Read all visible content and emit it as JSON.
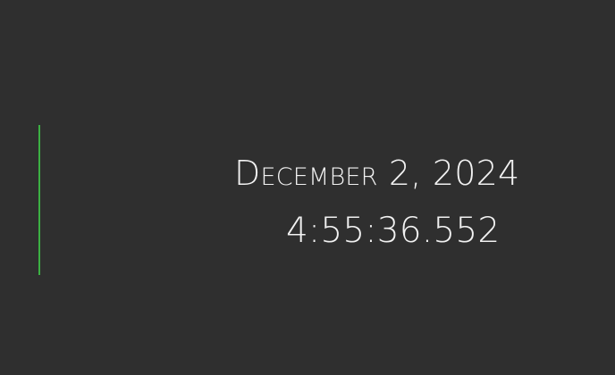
{
  "clock": {
    "date": "December 2, 2024",
    "time": "4:55:36.552"
  },
  "colors": {
    "background": "#2f2f2f",
    "accent": "#3cb043",
    "text": "#f2f2f2"
  }
}
